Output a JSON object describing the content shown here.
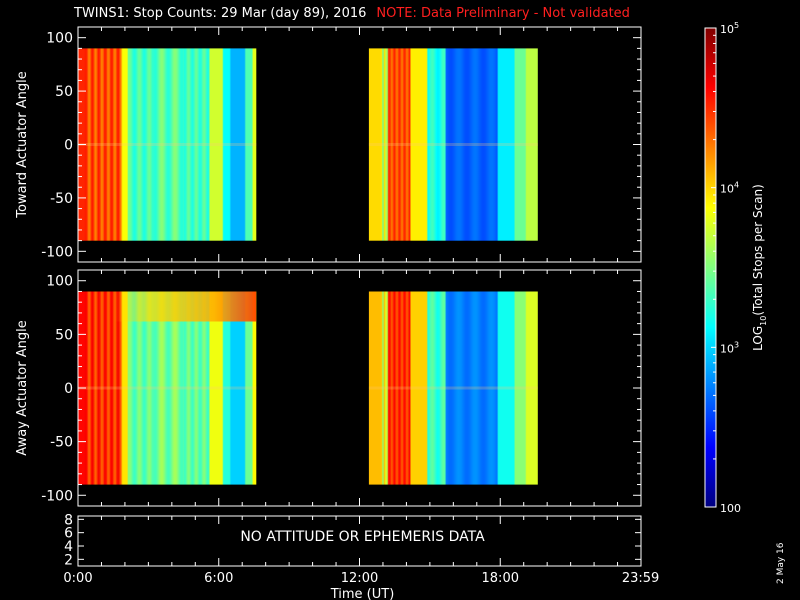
{
  "title": {
    "main": "TWINS1: Stop Counts: 29 Mar (day  89), 2016",
    "note": "NOTE: Data Preliminary - Not validated"
  },
  "date_stamp": "2 May 16",
  "colors": {
    "note": "#ff1f1f",
    "axes": "#ffffff",
    "background": "#000000",
    "colorbar_low": "#00007f",
    "colorbar_high": "#ff0000"
  },
  "chart_data": [
    {
      "type": "heatmap",
      "ylabel": "Toward Actuator Angle",
      "ylim": [
        -110,
        110
      ],
      "yticks": [
        "100",
        "50",
        "0",
        "-50",
        "-100"
      ],
      "ytick_values": [
        100,
        50,
        0,
        -50,
        -100
      ],
      "data_extent_y": [
        -90,
        90
      ],
      "xlim_hours": [
        0,
        24
      ],
      "data_intervals_hours": [
        [
          0.0,
          7.6
        ],
        [
          12.4,
          19.6
        ]
      ],
      "color_scale": "log10",
      "value_range": [
        100,
        100000
      ],
      "note": "counts per scan; high near 0-2 UT and 12.5-14 UT, minimum ~16-18 UT"
    },
    {
      "type": "heatmap",
      "ylabel": "Away Actuator Angle",
      "ylim": [
        -110,
        110
      ],
      "yticks": [
        "100",
        "50",
        "0",
        "-50",
        "-100"
      ],
      "ytick_values": [
        100,
        50,
        0,
        -50,
        -100
      ],
      "data_extent_y": [
        -90,
        90
      ],
      "xlim_hours": [
        0,
        24
      ],
      "data_intervals_hours": [
        [
          0.0,
          7.6
        ],
        [
          12.4,
          19.6
        ]
      ],
      "color_scale": "log10",
      "value_range": [
        100,
        100000
      ],
      "note": "elevated counts near +75 deg from 1.5-7.6 UT"
    },
    {
      "type": "line",
      "ylim": [
        1,
        8.5
      ],
      "yticks": [
        "8",
        "6",
        "4",
        "2"
      ],
      "ytick_values": [
        8,
        6,
        4,
        2
      ],
      "message": "NO ATTITUDE OR EPHEMERIS DATA",
      "xlabel": "Time (UT)",
      "xticks": [
        "0:00",
        "6:00",
        "12:00",
        "18:00",
        "23:59"
      ],
      "xtick_values": [
        0,
        6,
        12,
        18,
        23.983
      ]
    }
  ],
  "colorbar": {
    "label_parts": [
      "LOG",
      "10",
      "(Total Stops per Scan)"
    ],
    "tick_labels": [
      {
        "base": "10",
        "exp": "5",
        "value": 100000
      },
      {
        "base": "10",
        "exp": "4",
        "value": 10000
      },
      {
        "base": "10",
        "exp": "3",
        "value": 1000
      },
      {
        "base": "100",
        "exp": "",
        "value": 100
      }
    ]
  }
}
